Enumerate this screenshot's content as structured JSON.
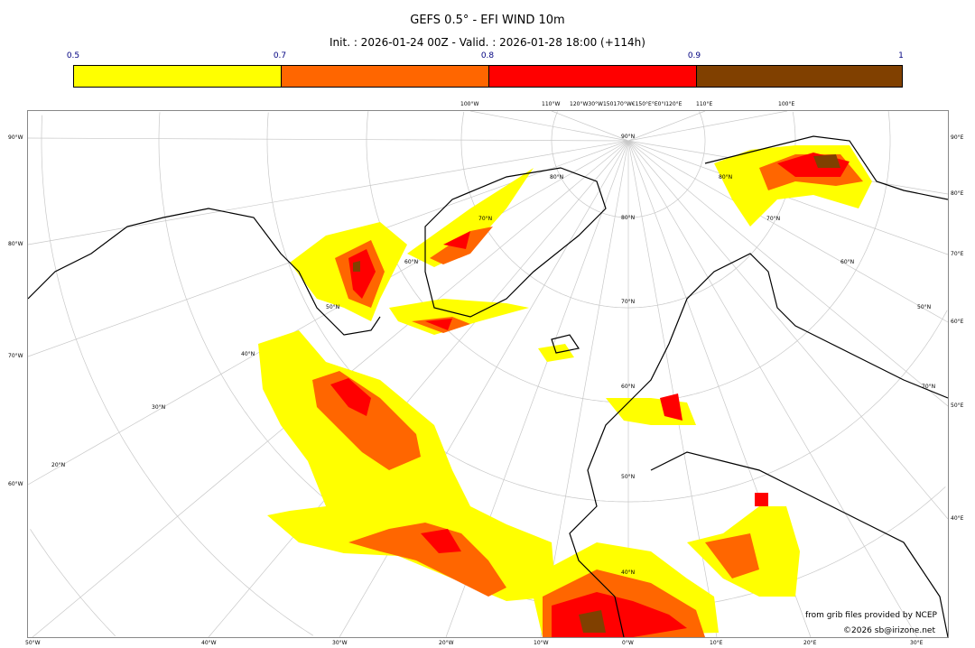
{
  "header": {
    "title": "GEFS 0.5° - EFI WIND 10m",
    "subtitle": "Init. : 2026-01-24 00Z - Valid. : 2026-01-28 18:00 (+114h)"
  },
  "colorbar": {
    "ticks": [
      "0.5",
      "0.7",
      "0.8",
      "0.9",
      "1"
    ],
    "bins": [
      {
        "from": 0.5,
        "to": 0.7,
        "color": "#ffff00"
      },
      {
        "from": 0.7,
        "to": 0.8,
        "color": "#ff6600"
      },
      {
        "from": 0.8,
        "to": 0.9,
        "color": "#ff0000"
      },
      {
        "from": 0.9,
        "to": 1.0,
        "color": "#804000"
      }
    ]
  },
  "map": {
    "projection": "polar stereographic (north)",
    "bottom_labels": [
      "50°W",
      "40°W",
      "30°W",
      "20°W",
      "10°W",
      "0°W",
      "10°E",
      "20°E",
      "30°E"
    ],
    "left_labels": [
      "90°W",
      "80°W",
      "70°W",
      "60°W"
    ],
    "right_labels": [
      "90°E",
      "80°E",
      "70°E",
      "60°E",
      "50°E",
      "40°E"
    ],
    "top_labels": [
      "100°W",
      "110°W",
      "120°W30°W150170°W€150°E°E0°I120°E",
      "110°E",
      "100°E"
    ],
    "interior_labels": [
      "90°N",
      "80°N",
      "70°N",
      "60°N",
      "50°N",
      "40°N",
      "80°N",
      "70°N",
      "60°N",
      "50°N",
      "40°N",
      "30°N",
      "20°N",
      "70°N",
      "60°N",
      "50°N",
      "80°N",
      "70°N"
    ]
  },
  "credits": {
    "source": "from grib files provided by NCEP",
    "copyright": "©2026 sb@irizone.net"
  }
}
